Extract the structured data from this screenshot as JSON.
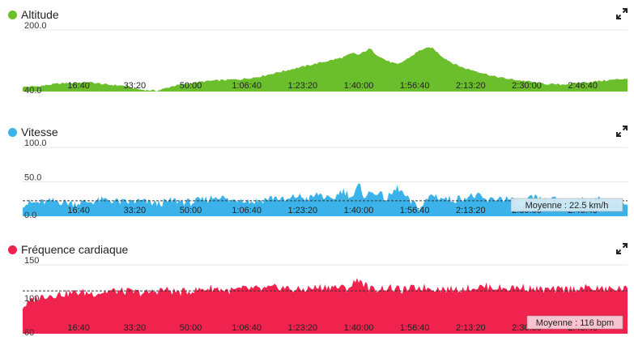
{
  "chart_data": [
    {
      "type": "area",
      "title": "Altitude",
      "color": "#6cbf2c",
      "ylim": [
        40,
        200
      ],
      "yticks": [
        "200.0",
        "40.0"
      ],
      "xlim": [
        0,
        10800
      ],
      "x_ticks": [
        "16:40",
        "33:20",
        "50:00",
        "1:06:40",
        "1:23:20",
        "1:40:00",
        "1:56:40",
        "2:13:20",
        "2:30:00",
        "2:46:40"
      ],
      "x_tick_seconds": [
        1000,
        2000,
        3000,
        4000,
        5000,
        6000,
        7000,
        8000,
        9000,
        10000
      ],
      "x_seconds": [
        0,
        300,
        600,
        900,
        1200,
        1500,
        1800,
        2100,
        2400,
        2700,
        3000,
        3300,
        3600,
        3900,
        4200,
        4500,
        4800,
        5100,
        5400,
        5700,
        5900,
        6000,
        6200,
        6300,
        6500,
        6700,
        6900,
        7100,
        7300,
        7500,
        7700,
        7900,
        8100,
        8400,
        8700,
        9000,
        9300,
        9600,
        9900,
        10200,
        10500,
        10800
      ],
      "values": [
        52,
        54,
        60,
        63,
        64,
        58,
        55,
        45,
        42,
        55,
        62,
        67,
        70,
        72,
        78,
        88,
        98,
        108,
        118,
        128,
        140,
        135,
        152,
        138,
        120,
        110,
        128,
        148,
        155,
        130,
        112,
        100,
        93,
        80,
        72,
        67,
        60,
        58,
        62,
        66,
        70,
        74
      ]
    },
    {
      "type": "area",
      "title": "Vitesse",
      "color": "#3bb3ea",
      "ylim": [
        0,
        100
      ],
      "yticks": [
        "100.0",
        "50.0",
        "0.0"
      ],
      "xlim": [
        0,
        10800
      ],
      "x_ticks": [
        "16:40",
        "33:20",
        "50:00",
        "1:06:40",
        "1:23:20",
        "1:40:00",
        "1:56:40",
        "2:13:20",
        "2:30:00",
        "2:46:40"
      ],
      "x_tick_seconds": [
        1000,
        2000,
        3000,
        4000,
        5000,
        6000,
        7000,
        8000,
        9000,
        10000
      ],
      "average_value": 22.5,
      "average_label": "Moyenne : 22.5 km/h",
      "x_seconds": [
        0,
        300,
        600,
        900,
        1200,
        1500,
        1800,
        2100,
        2400,
        2700,
        3000,
        3300,
        3500,
        3700,
        3900,
        4100,
        4300,
        4500,
        4700,
        4900,
        5100,
        5300,
        5500,
        5700,
        5900,
        6000,
        6100,
        6300,
        6500,
        6700,
        6900,
        7100,
        7300,
        7500,
        7700,
        7900,
        8100,
        8300,
        8500,
        8700,
        8900,
        9100,
        9300,
        9500,
        9700,
        9900,
        10100,
        10300,
        10500,
        10700,
        10800
      ],
      "values": [
        18,
        20,
        22,
        19,
        21,
        24,
        20,
        22,
        18,
        23,
        20,
        25,
        30,
        22,
        26,
        21,
        24,
        28,
        22,
        30,
        25,
        33,
        22,
        38,
        28,
        45,
        30,
        36,
        25,
        42,
        22,
        12,
        32,
        26,
        24,
        28,
        30,
        22,
        27,
        25,
        12,
        28,
        22,
        24,
        22,
        23,
        21,
        24,
        22,
        20,
        15
      ]
    },
    {
      "type": "area",
      "title": "Fréquence cardiaque",
      "color": "#f0224e",
      "ylim": [
        60,
        150
      ],
      "yticks": [
        "150",
        "100",
        "60"
      ],
      "xlim": [
        0,
        10800
      ],
      "x_ticks": [
        "16:40",
        "33:20",
        "50:00",
        "1:06:40",
        "1:23:20",
        "1:40:00",
        "1:56:40",
        "2:13:20",
        "2:30:00",
        "2:46:40"
      ],
      "x_tick_seconds": [
        1000,
        2000,
        3000,
        4000,
        5000,
        6000,
        7000,
        8000,
        9000,
        10000
      ],
      "average_value": 116,
      "average_label": "Moyenne : 116 bpm",
      "x_seconds": [
        0,
        200,
        400,
        700,
        1000,
        1300,
        1600,
        1900,
        2200,
        2500,
        2800,
        3100,
        3400,
        3700,
        4000,
        4300,
        4600,
        4900,
        5200,
        5500,
        5800,
        6000,
        6200,
        6500,
        6800,
        7100,
        7400,
        7700,
        8000,
        8300,
        8600,
        8900,
        9200,
        9500,
        9800,
        10100,
        10400,
        10700,
        10800
      ],
      "values": [
        95,
        105,
        110,
        112,
        114,
        113,
        116,
        115,
        113,
        118,
        114,
        117,
        120,
        116,
        119,
        118,
        121,
        117,
        120,
        122,
        119,
        132,
        118,
        120,
        117,
        121,
        119,
        118,
        120,
        122,
        119,
        121,
        118,
        117,
        119,
        120,
        118,
        119,
        118
      ]
    }
  ]
}
